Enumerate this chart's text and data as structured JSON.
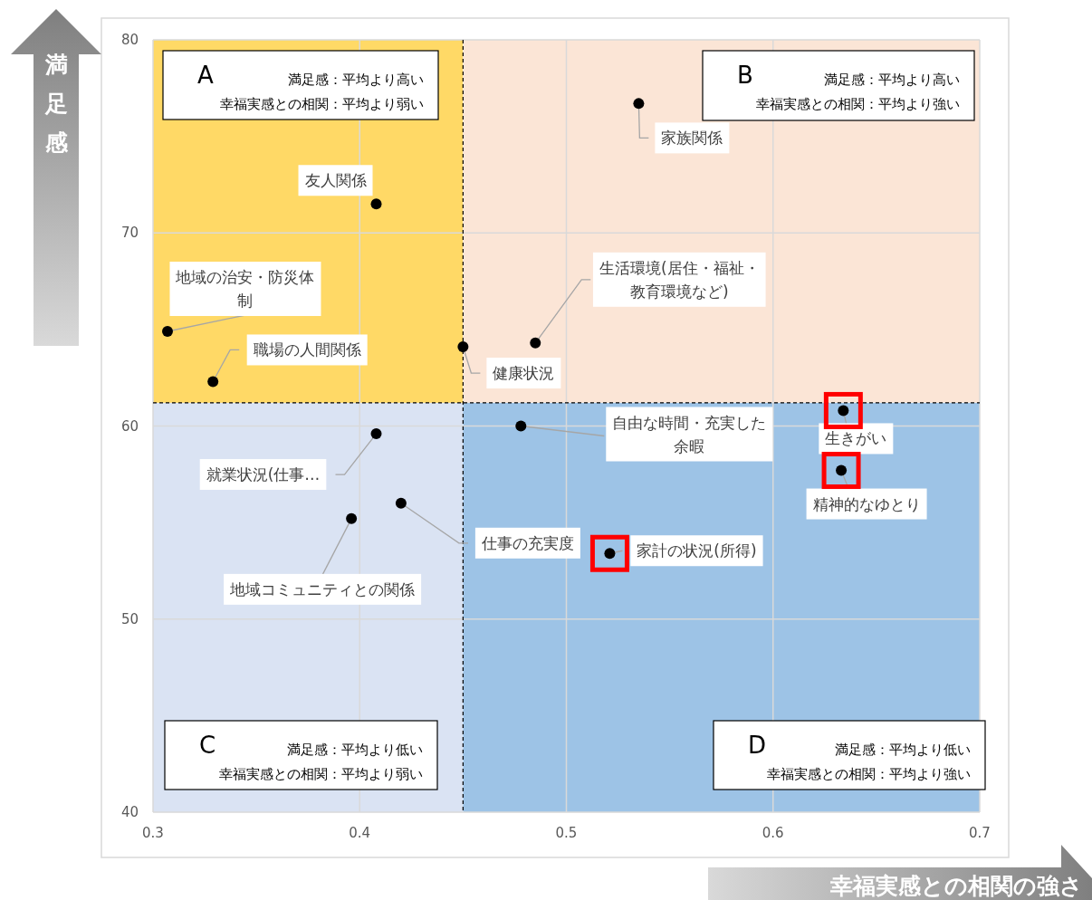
{
  "chart_data": {
    "type": "scatter",
    "xlabel": "幸福実感との相関の強さ",
    "ylabel": "満足感",
    "xlim": [
      0.3,
      0.7
    ],
    "ylim": [
      40,
      80
    ],
    "xticks": [
      0.3,
      0.4,
      0.5,
      0.6,
      0.7
    ],
    "yticks": [
      40,
      50,
      60,
      70,
      80
    ],
    "grid": true,
    "marker": "circle",
    "series": [
      {
        "color": "#000000",
        "x": [
          0.408,
          0.307,
          0.329,
          0.45,
          0.485,
          0.535,
          0.478,
          0.634,
          0.633,
          0.521,
          0.408,
          0.42,
          0.396
        ],
        "values": [
          71.5,
          64.9,
          62.3,
          64.1,
          64.3,
          76.7,
          60.0,
          60.8,
          57.7,
          53.4,
          59.6,
          56.0,
          55.2
        ]
      },
      {
        "color": "#ff0000",
        "marker": "square",
        "x": [
          0.634,
          0.633,
          0.521
        ],
        "values": [
          60.8,
          57.7,
          53.4
        ]
      }
    ],
    "ref_lines": [
      {
        "axis": "x",
        "value": 0.45,
        "color": "#000000",
        "line_style": "dashed"
      },
      {
        "axis": "y",
        "value": 61.2,
        "color": "#000000",
        "line_style": "dashed"
      }
    ],
    "bands": [
      {
        "axis": "x",
        "from": 0.3,
        "to": 0.45,
        "label": "A",
        "color": "#ffd966"
      },
      {
        "axis": "x",
        "from": 0.45,
        "to": 0.7,
        "label": "B",
        "color": "#fbe5d6"
      },
      {
        "axis": "x",
        "from": 0.3,
        "to": 0.45,
        "label": "C",
        "color": "#dae3f3"
      },
      {
        "axis": "x",
        "from": 0.45,
        "to": 0.7,
        "label": "D",
        "color": "#9dc3e6"
      }
    ],
    "annotations": [
      "満足感：平均より高い",
      "幸福実感との相関：平均より弱い",
      "満足感：平均より高い",
      "幸福実感との相関：平均より強い",
      "満足感：平均より低い",
      "幸福実感との相関：平均より弱い",
      "満足感：平均より低い",
      "幸福実感との相関：平均より強い",
      {
        "text": "友人関係",
        "x": 0.408,
        "y": 71.5
      },
      {
        "text": "地域の治安・防災体制",
        "x": 0.307,
        "y": 64.9
      },
      {
        "text": "職場の人間関係",
        "x": 0.329,
        "y": 62.3
      },
      {
        "text": "健康状況",
        "x": 0.45,
        "y": 64.1
      },
      {
        "text": "生活環境(居住・福祉・教育環境など)",
        "x": 0.485,
        "y": 64.3
      },
      {
        "text": "家族関係",
        "x": 0.535,
        "y": 76.7
      },
      {
        "text": "自由な時間・充実した余暇",
        "x": 0.478,
        "y": 60.0
      },
      {
        "text": "生きがい",
        "x": 0.634,
        "y": 60.8
      },
      {
        "text": "精神的なゆとり",
        "x": 0.633,
        "y": 57.7
      },
      {
        "text": "家計の状況(所得)",
        "x": 0.521,
        "y": 53.4
      },
      {
        "text": "就業状況(仕事…",
        "x": 0.408,
        "y": 59.6
      },
      {
        "text": "仕事の充実度",
        "x": 0.42,
        "y": 56.0
      },
      {
        "text": "地域コミュニティとの関係",
        "x": 0.396,
        "y": 55.2
      }
    ]
  }
}
